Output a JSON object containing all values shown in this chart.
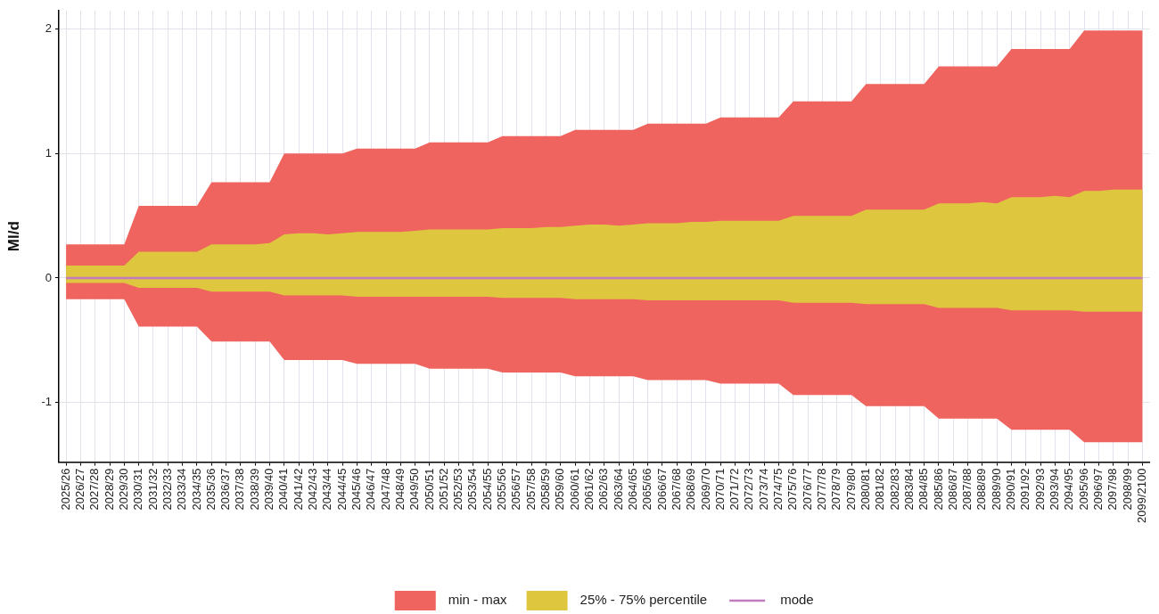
{
  "chart_data": {
    "type": "area",
    "ylabel": "Ml/d",
    "categories": [
      "2025/26",
      "2026/27",
      "2027/28",
      "2028/29",
      "2029/30",
      "2030/31",
      "2031/32",
      "2032/33",
      "2033/34",
      "2034/35",
      "2035/36",
      "2036/37",
      "2037/38",
      "2038/39",
      "2039/40",
      "2040/41",
      "2041/42",
      "2042/43",
      "2043/44",
      "2044/45",
      "2045/46",
      "2046/47",
      "2047/48",
      "2048/49",
      "2049/50",
      "2050/51",
      "2051/52",
      "2052/53",
      "2053/54",
      "2054/55",
      "2055/56",
      "2056/57",
      "2057/58",
      "2058/59",
      "2059/60",
      "2060/61",
      "2061/62",
      "2062/63",
      "2063/64",
      "2064/65",
      "2065/66",
      "2066/67",
      "2067/68",
      "2068/69",
      "2069/70",
      "2070/71",
      "2071/72",
      "2072/73",
      "2073/74",
      "2074/75",
      "2075/76",
      "2076/77",
      "2077/78",
      "2078/79",
      "2079/80",
      "2080/81",
      "2081/82",
      "2082/83",
      "2083/84",
      "2084/85",
      "2085/86",
      "2086/87",
      "2087/88",
      "2088/89",
      "2089/90",
      "2090/91",
      "2091/92",
      "2092/93",
      "2093/94",
      "2094/95",
      "2095/96",
      "2096/97",
      "2097/98",
      "2098/99",
      "2099/2100"
    ],
    "series": [
      {
        "name": "min - max",
        "type": "area",
        "color": "#f0645f",
        "values": [
          null,
          null,
          null,
          null,
          null,
          null,
          null,
          null,
          null,
          null,
          null,
          null,
          null,
          null,
          null,
          null,
          null,
          null,
          null,
          null,
          null,
          null,
          null,
          null,
          null,
          null,
          null,
          null,
          null,
          null,
          null,
          null,
          null,
          null,
          null,
          null,
          null,
          null,
          null,
          null,
          null,
          null,
          null,
          null,
          null,
          null,
          null,
          null,
          null,
          null,
          null,
          null,
          null,
          null,
          null,
          null,
          null,
          null,
          null,
          null,
          null,
          null,
          null,
          null,
          null,
          null,
          null,
          null,
          null,
          null,
          null,
          null,
          null,
          null,
          null
        ],
        "lower": [
          -0.17,
          -0.17,
          -0.17,
          -0.17,
          -0.17,
          -0.39,
          -0.39,
          -0.39,
          -0.39,
          -0.39,
          -0.51,
          -0.51,
          -0.51,
          -0.51,
          -0.51,
          -0.66,
          -0.66,
          -0.66,
          -0.66,
          -0.66,
          -0.69,
          -0.69,
          -0.69,
          -0.69,
          -0.69,
          -0.73,
          -0.73,
          -0.73,
          -0.73,
          -0.73,
          -0.76,
          -0.76,
          -0.76,
          -0.76,
          -0.76,
          -0.79,
          -0.79,
          -0.79,
          -0.79,
          -0.79,
          -0.82,
          -0.82,
          -0.82,
          -0.82,
          -0.82,
          -0.85,
          -0.85,
          -0.85,
          -0.85,
          -0.85,
          -0.94,
          -0.94,
          -0.94,
          -0.94,
          -0.94,
          -1.03,
          -1.03,
          -1.03,
          -1.03,
          -1.03,
          -1.13,
          -1.13,
          -1.13,
          -1.13,
          -1.13,
          -1.22,
          -1.22,
          -1.22,
          -1.22,
          -1.22,
          -1.32,
          -1.32,
          -1.32,
          -1.32,
          -1.32
        ],
        "upper": [
          0.27,
          0.27,
          0.27,
          0.27,
          0.27,
          0.58,
          0.58,
          0.58,
          0.58,
          0.58,
          0.77,
          0.77,
          0.77,
          0.77,
          0.77,
          1.0,
          1.0,
          1.0,
          1.0,
          1.0,
          1.04,
          1.04,
          1.04,
          1.04,
          1.04,
          1.09,
          1.09,
          1.09,
          1.09,
          1.09,
          1.14,
          1.14,
          1.14,
          1.14,
          1.14,
          1.19,
          1.19,
          1.19,
          1.19,
          1.19,
          1.24,
          1.24,
          1.24,
          1.24,
          1.24,
          1.29,
          1.29,
          1.29,
          1.29,
          1.29,
          1.42,
          1.42,
          1.42,
          1.42,
          1.42,
          1.56,
          1.56,
          1.56,
          1.56,
          1.56,
          1.7,
          1.7,
          1.7,
          1.7,
          1.7,
          1.84,
          1.84,
          1.84,
          1.84,
          1.84,
          1.99,
          1.99,
          1.99,
          1.99,
          1.99
        ]
      },
      {
        "name": "25% - 75% percentile",
        "type": "area",
        "color": "#dec63f",
        "values": [
          null,
          null,
          null,
          null,
          null,
          null,
          null,
          null,
          null,
          null,
          null,
          null,
          null,
          null,
          null,
          null,
          null,
          null,
          null,
          null,
          null,
          null,
          null,
          null,
          null,
          null,
          null,
          null,
          null,
          null,
          null,
          null,
          null,
          null,
          null,
          null,
          null,
          null,
          null,
          null,
          null,
          null,
          null,
          null,
          null,
          null,
          null,
          null,
          null,
          null,
          null,
          null,
          null,
          null,
          null,
          null,
          null,
          null,
          null,
          null,
          null,
          null,
          null,
          null,
          null,
          null,
          null,
          null,
          null,
          null,
          null,
          null,
          null,
          null,
          null
        ],
        "lower": [
          -0.04,
          -0.04,
          -0.04,
          -0.04,
          -0.04,
          -0.08,
          -0.08,
          -0.08,
          -0.08,
          -0.08,
          -0.11,
          -0.11,
          -0.11,
          -0.11,
          -0.11,
          -0.14,
          -0.14,
          -0.14,
          -0.14,
          -0.14,
          -0.15,
          -0.15,
          -0.15,
          -0.15,
          -0.15,
          -0.15,
          -0.15,
          -0.15,
          -0.15,
          -0.15,
          -0.16,
          -0.16,
          -0.16,
          -0.16,
          -0.16,
          -0.17,
          -0.17,
          -0.17,
          -0.17,
          -0.17,
          -0.18,
          -0.18,
          -0.18,
          -0.18,
          -0.18,
          -0.18,
          -0.18,
          -0.18,
          -0.18,
          -0.18,
          -0.2,
          -0.2,
          -0.2,
          -0.2,
          -0.2,
          -0.21,
          -0.21,
          -0.21,
          -0.21,
          -0.21,
          -0.24,
          -0.24,
          -0.24,
          -0.24,
          -0.24,
          -0.26,
          -0.26,
          -0.26,
          -0.26,
          -0.26,
          -0.27,
          -0.27,
          -0.27,
          -0.27,
          -0.27
        ],
        "upper": [
          0.1,
          0.1,
          0.1,
          0.1,
          0.1,
          0.21,
          0.21,
          0.21,
          0.21,
          0.21,
          0.27,
          0.27,
          0.27,
          0.27,
          0.28,
          0.35,
          0.36,
          0.36,
          0.35,
          0.36,
          0.37,
          0.37,
          0.37,
          0.37,
          0.38,
          0.39,
          0.39,
          0.39,
          0.39,
          0.39,
          0.4,
          0.4,
          0.4,
          0.41,
          0.41,
          0.42,
          0.43,
          0.43,
          0.42,
          0.43,
          0.44,
          0.44,
          0.44,
          0.45,
          0.45,
          0.46,
          0.46,
          0.46,
          0.46,
          0.46,
          0.5,
          0.5,
          0.5,
          0.5,
          0.5,
          0.55,
          0.55,
          0.55,
          0.55,
          0.55,
          0.6,
          0.6,
          0.6,
          0.61,
          0.6,
          0.65,
          0.65,
          0.65,
          0.66,
          0.65,
          0.7,
          0.7,
          0.71,
          0.71,
          0.71
        ]
      },
      {
        "name": "mode",
        "type": "line",
        "color": "#c07cbf",
        "values": [
          0,
          0,
          0,
          0,
          0,
          0,
          0,
          0,
          0,
          0,
          0,
          0,
          0,
          0,
          0,
          0,
          0,
          0,
          0,
          0,
          0,
          0,
          0,
          0,
          0,
          0,
          0,
          0,
          0,
          0,
          0,
          0,
          0,
          0,
          0,
          0,
          0,
          0,
          0,
          0,
          0,
          0,
          0,
          0,
          0,
          0,
          0,
          0,
          0,
          0,
          0,
          0,
          0,
          0,
          0,
          0,
          0,
          0,
          0,
          0,
          0,
          0,
          0,
          0,
          0,
          0,
          0,
          0,
          0,
          0,
          0,
          0,
          0,
          0,
          0
        ]
      }
    ],
    "ylim": [
      -1.48,
      2.15
    ],
    "yticks": [
      -1,
      0,
      1,
      2
    ],
    "grid": true,
    "legend": "bottom",
    "marker": "none"
  }
}
